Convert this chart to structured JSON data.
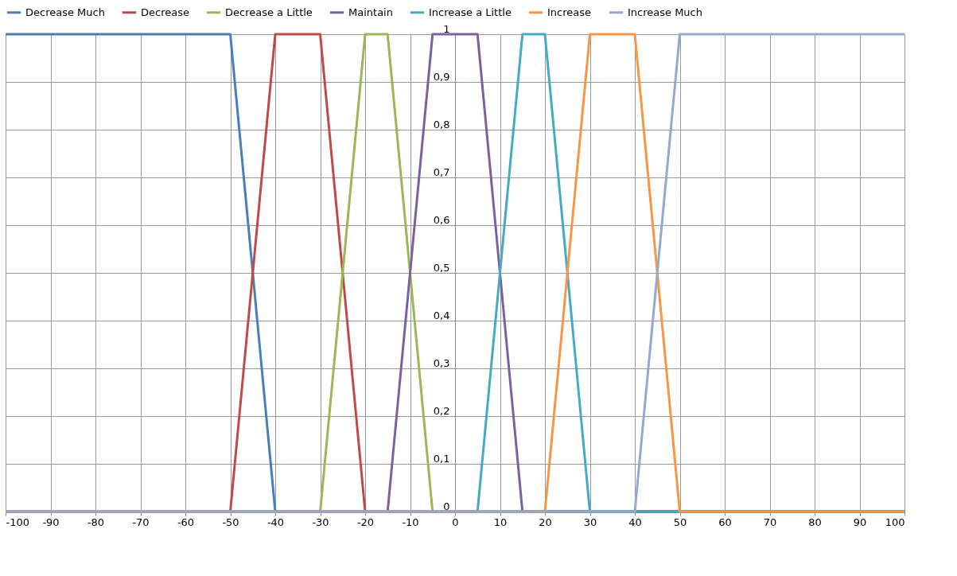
{
  "chart_data": {
    "type": "line",
    "xlim": [
      -100,
      100
    ],
    "ylim": [
      0,
      1
    ],
    "xticks": [
      -100,
      -90,
      -80,
      -70,
      -60,
      -50,
      -40,
      -30,
      -20,
      -10,
      0,
      10,
      20,
      30,
      40,
      50,
      60,
      70,
      80,
      90,
      100
    ],
    "yticks": [
      0,
      {
        "value": 0.1,
        "label": "0,1"
      },
      {
        "value": 0.2,
        "label": "0,2"
      },
      {
        "value": 0.3,
        "label": "0,3"
      },
      {
        "value": 0.4,
        "label": "0,4"
      },
      {
        "value": 0.5,
        "label": "0,5"
      },
      {
        "value": 0.6,
        "label": "0,6"
      },
      {
        "value": 0.7,
        "label": "0,7"
      },
      {
        "value": 0.8,
        "label": "0,8"
      },
      {
        "value": 0.9,
        "label": "0,9"
      },
      1
    ],
    "grid": true,
    "legend": "top",
    "marker": "none",
    "line_style": "solid",
    "series": [
      {
        "name": "Decrease Much",
        "color": "#4a7ebb",
        "x": [
          -100,
          -50,
          -40,
          100
        ],
        "values": [
          1,
          1,
          0,
          0
        ]
      },
      {
        "name": "Decrease",
        "color": "#be4b48",
        "x": [
          -100,
          -50,
          -40,
          -30,
          -20,
          100
        ],
        "values": [
          0,
          0,
          1,
          1,
          0,
          0
        ]
      },
      {
        "name": "Decrease a Little",
        "color": "#98b954",
        "x": [
          -100,
          -30,
          -20,
          -15,
          -5,
          100
        ],
        "values": [
          0,
          0,
          1,
          1,
          0,
          0
        ]
      },
      {
        "name": "Maintain",
        "color": "#7d60a0",
        "x": [
          -100,
          -15,
          -5,
          5,
          15,
          100
        ],
        "values": [
          0,
          0,
          1,
          1,
          0,
          0
        ]
      },
      {
        "name": "Increase a Little",
        "color": "#46aac5",
        "x": [
          -100,
          5,
          15,
          20,
          30,
          100
        ],
        "values": [
          0,
          0,
          1,
          1,
          0,
          0
        ]
      },
      {
        "name": "Increase",
        "color": "#f79646",
        "x": [
          -100,
          20,
          30,
          40,
          50,
          100
        ],
        "values": [
          0,
          0,
          1,
          1,
          0,
          0
        ]
      },
      {
        "name": "Increase Much",
        "color": "#93a9cf",
        "x": [
          -100,
          40,
          50,
          100
        ],
        "values": [
          0,
          0,
          1,
          1
        ]
      }
    ]
  }
}
